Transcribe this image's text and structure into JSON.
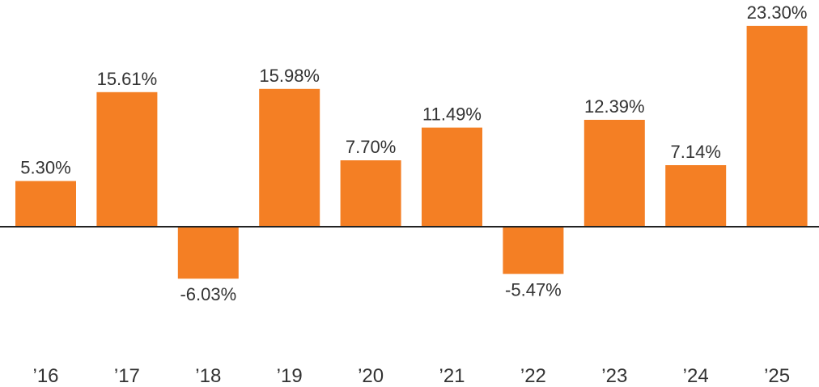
{
  "chart_data": {
    "type": "bar",
    "categories": [
      "’16",
      "’17",
      "’18",
      "’19",
      "’20",
      "’21",
      "’22",
      "’23",
      "’24",
      "’25"
    ],
    "values": [
      5.3,
      15.61,
      -6.03,
      15.98,
      7.7,
      11.49,
      -5.47,
      12.39,
      7.14,
      23.3
    ],
    "value_labels": [
      "5.30%",
      "15.61%",
      "-6.03%",
      "15.98%",
      "7.70%",
      "11.49%",
      "-5.47%",
      "12.39%",
      "7.14%",
      "23.30%"
    ],
    "title": "",
    "xlabel": "",
    "ylabel": "",
    "ylim": [
      -6.03,
      23.3
    ],
    "grid": false,
    "legend": "none",
    "colors": {
      "bar": "#F47F24",
      "axis": "#222222",
      "text": "#333333"
    }
  }
}
